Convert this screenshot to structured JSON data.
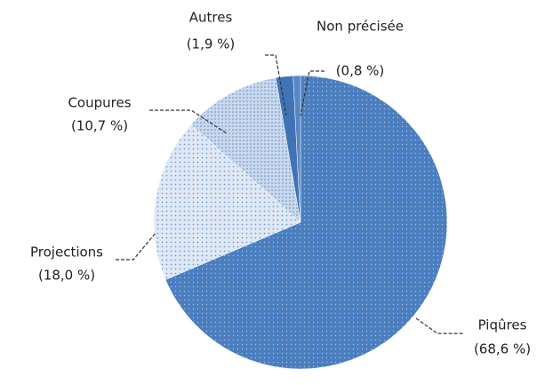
{
  "chart_data": {
    "type": "pie",
    "categories": [
      "Piqûres",
      "Projections",
      "Coupures",
      "Autres",
      "Non précisée"
    ],
    "values": [
      68.6,
      18.0,
      10.7,
      1.9,
      0.8
    ],
    "value_labels": [
      "(68,6 %)",
      "(18,0 %)",
      "(10,7 %)",
      "(1,9 %)",
      "(0,8 %)"
    ],
    "colors": [
      "#4a7ebf",
      "#dfe8f4",
      "#c9d8ec",
      "#3f72b5",
      "#5a8ac6"
    ]
  }
}
